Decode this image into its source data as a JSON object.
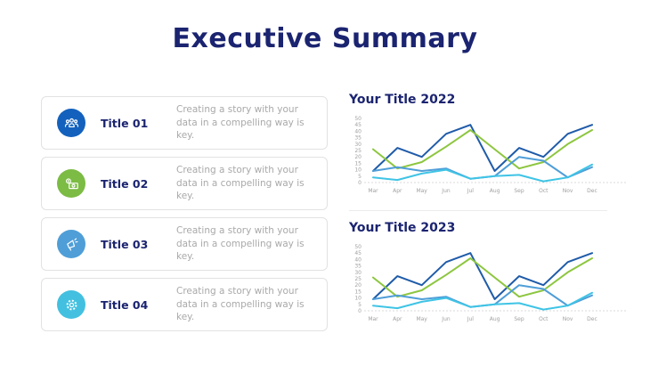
{
  "slide": {
    "title": "Executive Summary"
  },
  "list": {
    "items": [
      {
        "title": "Title 01",
        "description": "Creating a story with your data in a compelling way is key.",
        "icon": "team-icon",
        "icon_color": "#1361BD"
      },
      {
        "title": "Title 02",
        "description": "Creating a story with your data in a compelling way is key.",
        "icon": "money-icon",
        "icon_color": "#7CBB44"
      },
      {
        "title": "Title 03",
        "description": "Creating a story with your data in a compelling way is key.",
        "icon": "megaphone-icon",
        "icon_color": "#4F9ED8"
      },
      {
        "title": "Title 04",
        "description": "Creating a story with your data in a compelling way is key.",
        "icon": "gear-icon",
        "icon_color": "#43C0E0"
      }
    ]
  },
  "colors": {
    "heading_navy": "#1b2470",
    "description_gray": "#a9a9a9",
    "axis_label_gray": "#a0a0a0",
    "card_border": "#e2e2e2"
  },
  "chart_data": [
    {
      "type": "line",
      "title": "Your Title 2022",
      "categories": [
        "Mar",
        "Apr",
        "May",
        "Jun",
        "Jul",
        "Aug",
        "Sep",
        "Oct",
        "Nov",
        "Dec"
      ],
      "series": [
        {
          "name": "series-dark-blue",
          "color": "#1F5BA9",
          "values": [
            9,
            27,
            20,
            38,
            45,
            9,
            27,
            20,
            38,
            45
          ]
        },
        {
          "name": "series-green",
          "color": "#8DC63F",
          "values": [
            26,
            11,
            16,
            28,
            41,
            26,
            11,
            16,
            30,
            41
          ]
        },
        {
          "name": "series-steel-blue",
          "color": "#4F9ED8",
          "values": [
            9,
            12,
            9,
            11,
            3,
            5,
            20,
            17,
            4,
            12
          ]
        },
        {
          "name": "series-cyan",
          "color": "#3FC4E5",
          "values": [
            4,
            2,
            7,
            10,
            3,
            5,
            6,
            1,
            4,
            14
          ]
        }
      ],
      "ylim": [
        0,
        50
      ],
      "ytick_step": 5,
      "grid": false,
      "legend": "none"
    },
    {
      "type": "line",
      "title": "Your Title 2023",
      "categories": [
        "Mar",
        "Apr",
        "May",
        "Jun",
        "Jul",
        "Aug",
        "Sep",
        "Oct",
        "Nov",
        "Dec"
      ],
      "series": [
        {
          "name": "series-dark-blue",
          "color": "#1F5BA9",
          "values": [
            9,
            27,
            20,
            38,
            45,
            9,
            27,
            20,
            38,
            45
          ]
        },
        {
          "name": "series-green",
          "color": "#8DC63F",
          "values": [
            26,
            11,
            16,
            28,
            41,
            26,
            11,
            16,
            30,
            41
          ]
        },
        {
          "name": "series-steel-blue",
          "color": "#4F9ED8",
          "values": [
            9,
            12,
            9,
            11,
            3,
            5,
            20,
            17,
            4,
            12
          ]
        },
        {
          "name": "series-cyan",
          "color": "#3FC4E5",
          "values": [
            4,
            2,
            7,
            10,
            3,
            5,
            6,
            1,
            4,
            14
          ]
        }
      ],
      "ylim": [
        0,
        50
      ],
      "ytick_step": 5,
      "grid": false,
      "legend": "none"
    }
  ]
}
